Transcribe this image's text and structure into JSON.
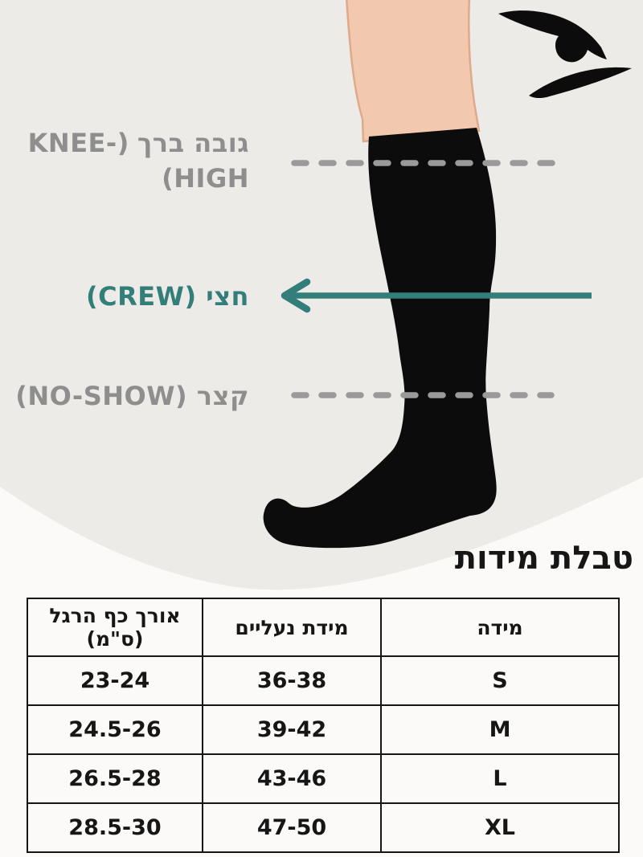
{
  "colors": {
    "bg_gray": "#ECEBE8",
    "bg_white": "#FBFAF8",
    "gray_label": "#8E8E8E",
    "dash_gray": "#9A9A9A",
    "teal": "#337E79",
    "ink": "#161616",
    "sock_black": "#0C0C0C",
    "skin": "#F2C9AE",
    "skin_outline": "#DFA98B"
  },
  "brand": {
    "logo": "eagle-swoosh-logo"
  },
  "labels": {
    "knee": {
      "full_text": "גובה ברך (KNEE-HIGH)",
      "hebrew": "גובה ברך",
      "visual_line1_latin": "KNEE-)",
      "visual_line2": "(HIGH"
    },
    "crew": {
      "text": "חצי (CREW)"
    },
    "noshow": {
      "text": "קצר (NO-SHOW)"
    }
  },
  "lines": {
    "knee_style": "dashed-gray",
    "crew_style": "solid-teal-arrow-left",
    "noshow_style": "dashed-gray"
  },
  "size_table": {
    "title": "טבלת מידות",
    "headers": [
      "מידה",
      "מידת נעליים",
      "אורך כף הרגל (ס\"מ)"
    ],
    "rows": [
      {
        "size": "S",
        "shoe": "36-38",
        "foot": "23-24"
      },
      {
        "size": "M",
        "shoe": "39-42",
        "foot": "24.5-26"
      },
      {
        "size": "L",
        "shoe": "43-46",
        "foot": "26.5-28"
      },
      {
        "size": "XL",
        "shoe": "47-50",
        "foot": "28.5-30"
      }
    ]
  }
}
